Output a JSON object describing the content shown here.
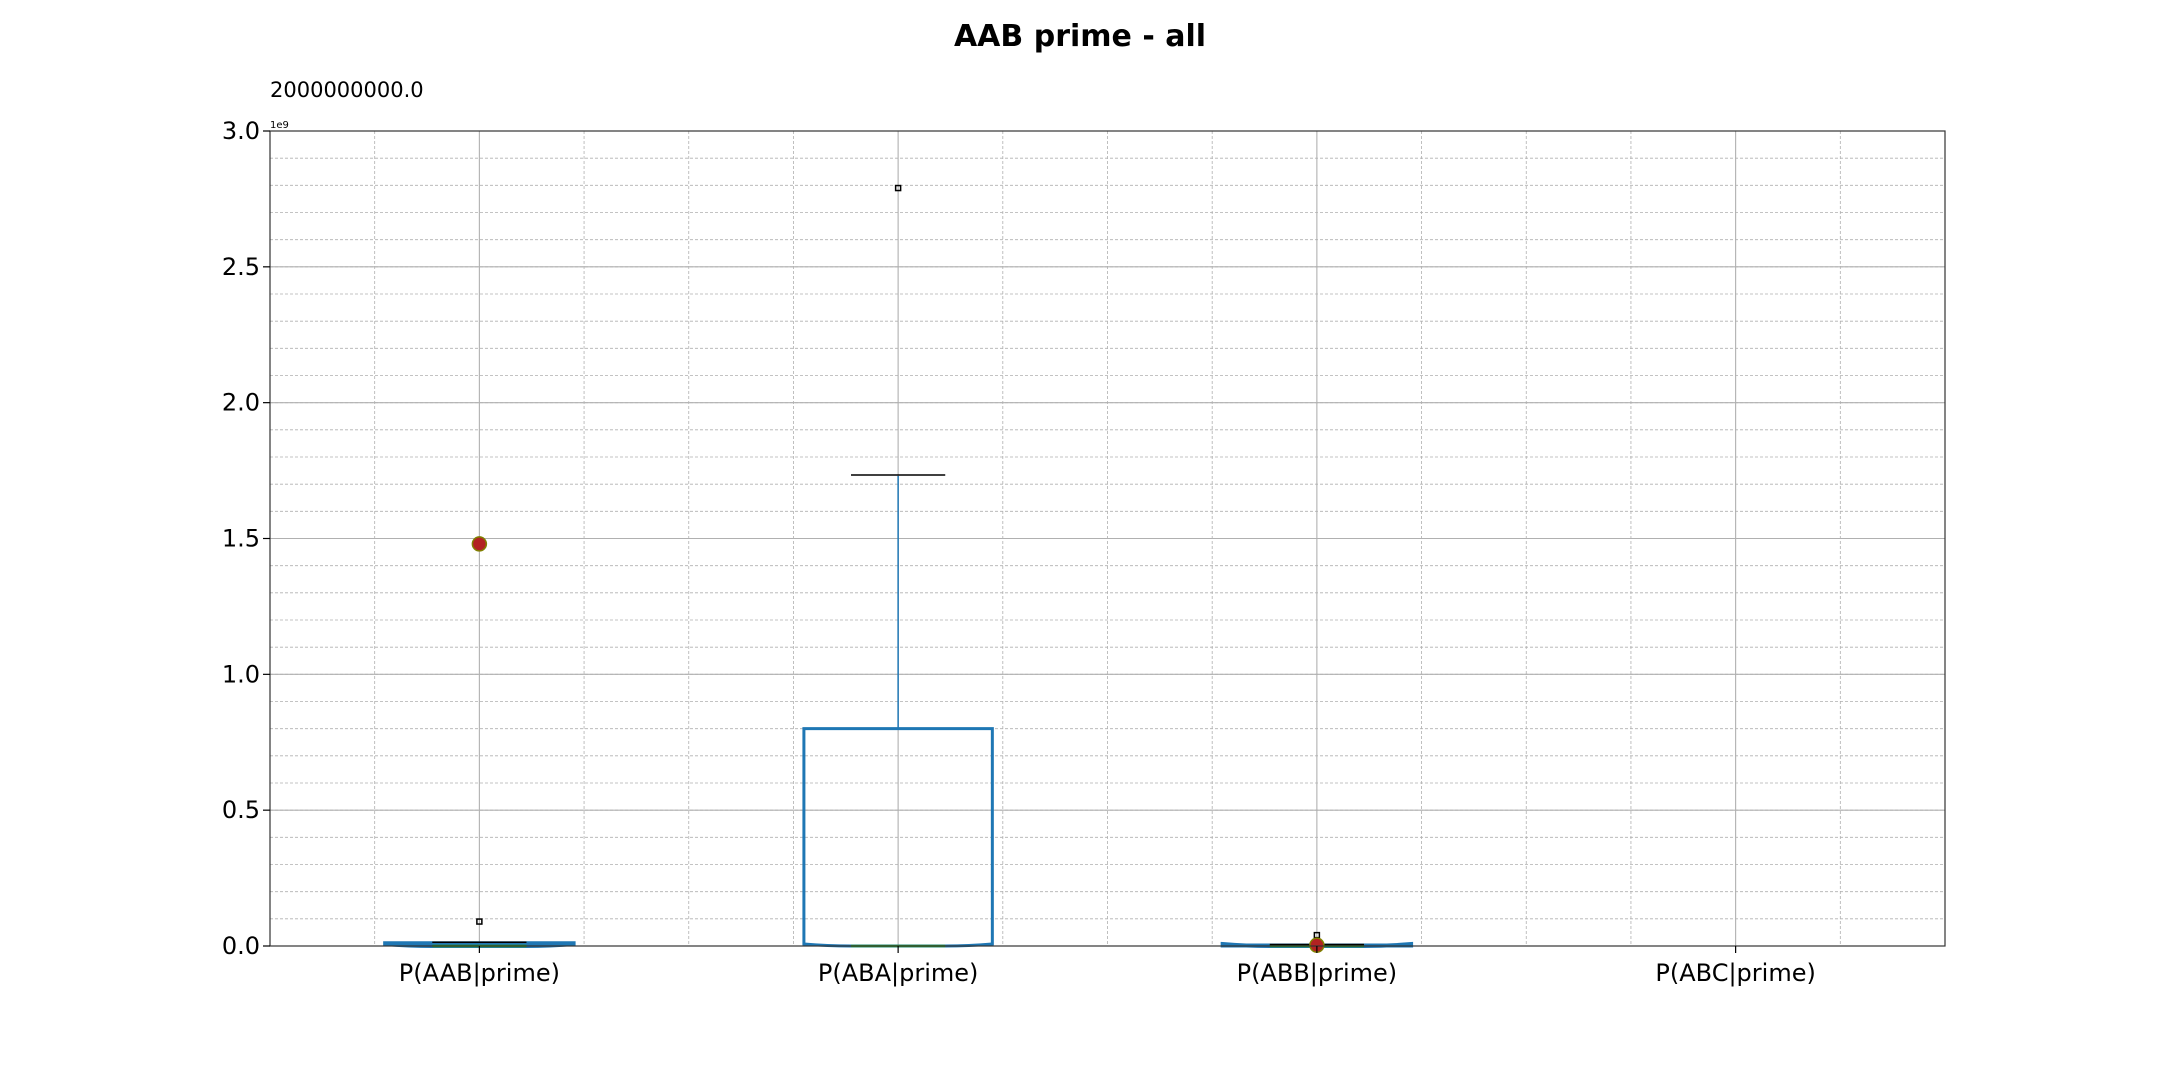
{
  "chart_data": {
    "type": "box",
    "title": "AAB prime - all",
    "annotation": "2000000000.0",
    "offset_label": "1e9",
    "y_scale": 1000000000,
    "ylim": [
      0,
      3.0
    ],
    "y_ticks": [
      0.0,
      0.5,
      1.0,
      1.5,
      2.0,
      2.5,
      3.0
    ],
    "y_tick_labels": [
      "0.0",
      "0.5",
      "1.0",
      "1.5",
      "2.0",
      "2.5",
      "3.0"
    ],
    "grid": true,
    "notched": true,
    "colors": {
      "box": "#1f77b4",
      "median": "#2ca02c",
      "whisker": "#1f77b4",
      "cap": "#000000",
      "mean_fill": "#b22222",
      "mean_edge": "#808000",
      "flier": "#000000",
      "grid": "#b0b0b0"
    },
    "categories": [
      "P(AAB|prime)",
      "P(ABA|prime)",
      "P(ABB|prime)",
      "P(ABC|prime)"
    ],
    "boxes": [
      {
        "q1": 0.0,
        "median": 0.0,
        "q3": 0.01,
        "whislo": 0.0,
        "whishi": 0.01,
        "mean": 1.48,
        "fliers": [
          0.09
        ]
      },
      {
        "q1": 0.0,
        "median": 0.0,
        "q3": 0.8,
        "whislo": 0.0,
        "whishi": 1.73,
        "mean": null,
        "fliers": [
          2.79
        ]
      },
      {
        "q1": 0.0,
        "median": 0.0,
        "q3": 0.002,
        "whislo": 0.0,
        "whishi": 0.002,
        "mean": 0.003,
        "fliers": [
          0.04
        ]
      },
      null
    ]
  }
}
